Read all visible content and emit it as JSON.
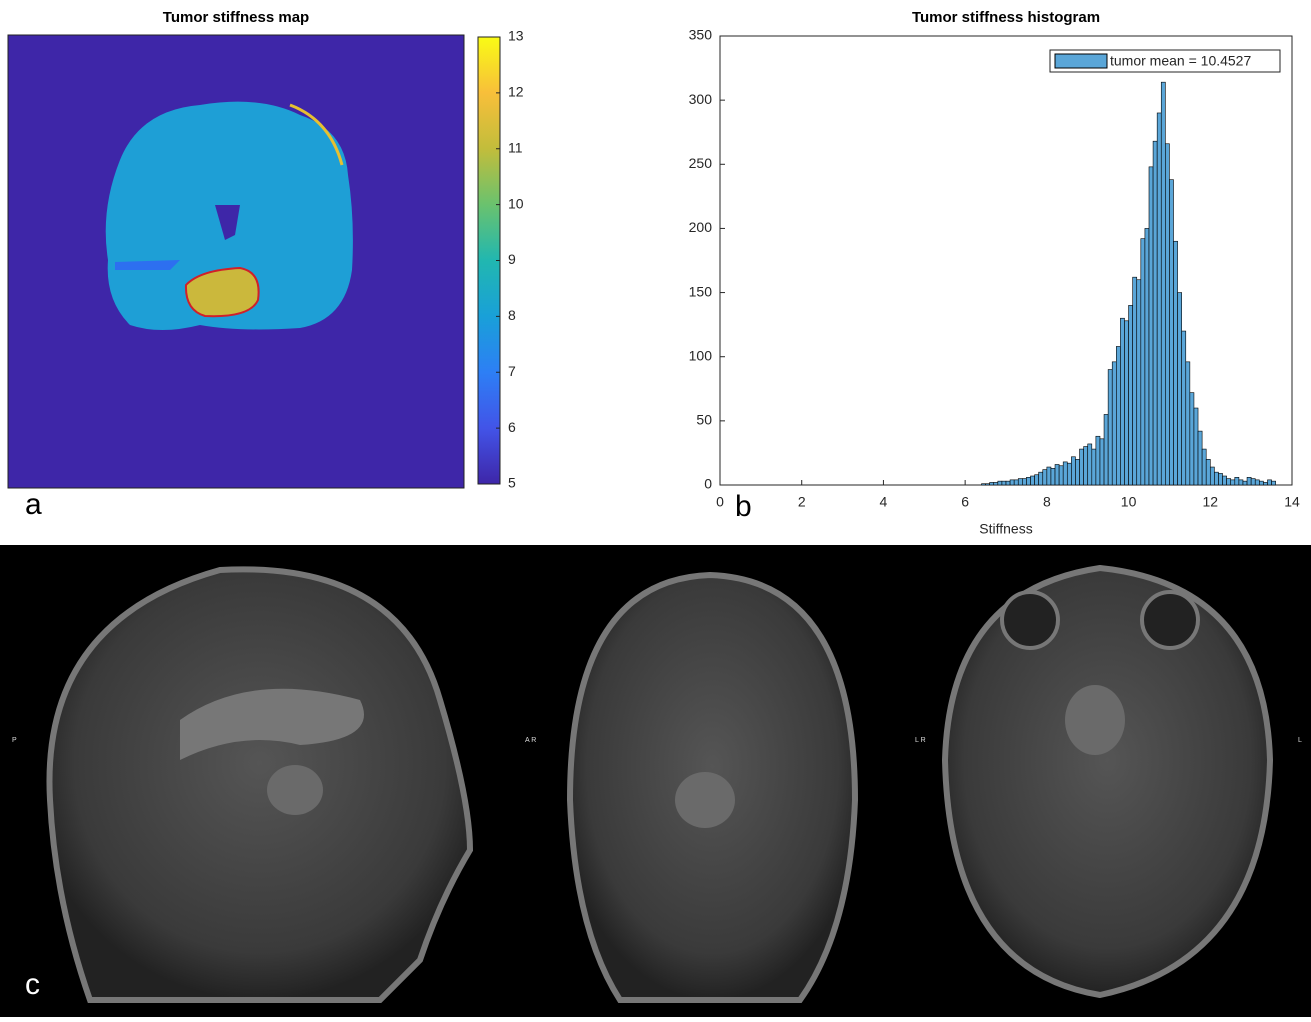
{
  "figure": {
    "panel_labels": [
      "a",
      "b",
      "c"
    ]
  },
  "chart_data": [
    {
      "type": "heatmap",
      "title": "Tumor stiffness map",
      "colormap": "parula",
      "clim": [
        5,
        13
      ],
      "cticks": [
        5,
        6,
        7,
        8,
        9,
        10,
        11,
        12,
        13
      ]
    },
    {
      "type": "histogram",
      "title": "Tumor stiffness histogram",
      "xlabel": "Stiffness",
      "bins": [
        6.4,
        6.5,
        6.6,
        6.7,
        6.8,
        6.9,
        7.0,
        7.1,
        7.2,
        7.3,
        7.4,
        7.5,
        7.6,
        7.7,
        7.8,
        7.9,
        8.0,
        8.1,
        8.2,
        8.3,
        8.4,
        8.5,
        8.6,
        8.7,
        8.8,
        8.9,
        9.0,
        9.1,
        9.2,
        9.3,
        9.4,
        9.5,
        9.6,
        9.7,
        9.8,
        9.9,
        10.0,
        10.1,
        10.2,
        10.3,
        10.4,
        10.5,
        10.6,
        10.7,
        10.8,
        10.9,
        11.0,
        11.1,
        11.2,
        11.3,
        11.4,
        11.5,
        11.6,
        11.7,
        11.8,
        11.9,
        12.0,
        12.1,
        12.2,
        12.3,
        12.4,
        12.5,
        12.6,
        12.7,
        12.8,
        12.9,
        13.0,
        13.1,
        13.2,
        13.3,
        13.4,
        13.5,
        13.6
      ],
      "series": [
        {
          "name": "tumor mean = 10.4527",
          "color": "#5aa6d8",
          "values": [
            1,
            1,
            2,
            2,
            3,
            3,
            3,
            4,
            4,
            5,
            5,
            6,
            7,
            8,
            10,
            12,
            14,
            13,
            16,
            15,
            18,
            17,
            22,
            20,
            28,
            30,
            32,
            28,
            38,
            36,
            55,
            90,
            96,
            108,
            130,
            128,
            140,
            162,
            160,
            192,
            200,
            248,
            268,
            290,
            314,
            266,
            238,
            190,
            150,
            120,
            96,
            72,
            60,
            42,
            28,
            20,
            14,
            10,
            9,
            7,
            5,
            4,
            6,
            4,
            3,
            6,
            5,
            4,
            3,
            2,
            4,
            3
          ]
        }
      ],
      "xlim": [
        0,
        14
      ],
      "ylim": [
        0,
        350
      ],
      "xticks": [
        0,
        2,
        4,
        6,
        8,
        10,
        12,
        14
      ],
      "yticks": [
        0,
        50,
        100,
        150,
        200,
        250,
        300,
        350
      ],
      "grid": false,
      "legend": "upper right"
    }
  ],
  "mri": {
    "orientation_labels": [
      "P",
      "A R",
      "L R",
      "L"
    ]
  }
}
